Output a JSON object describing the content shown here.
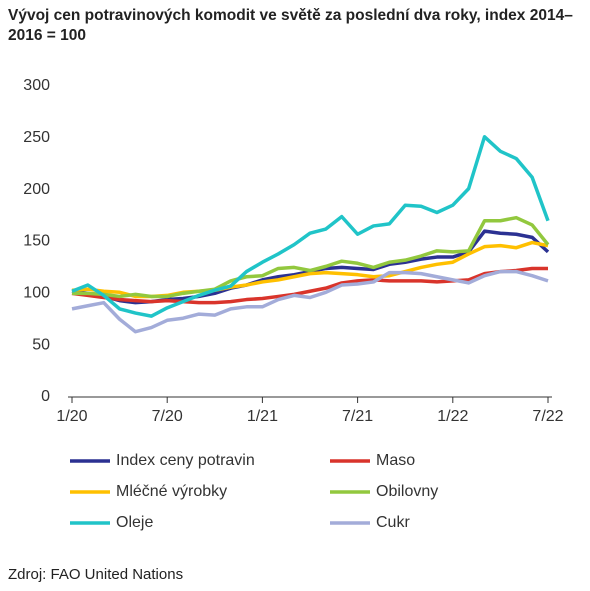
{
  "chart_data": {
    "type": "line",
    "title": "Vývoj cen potravinových komodit ve světě za poslední dva roky, index 2014–2016 = 100",
    "source": "Zdroj: FAO United Nations",
    "categories": [
      "1/20",
      null,
      null,
      null,
      null,
      null,
      "7/20",
      null,
      null,
      null,
      null,
      null,
      "1/21",
      null,
      null,
      null,
      null,
      null,
      "7/21",
      null,
      null,
      null,
      null,
      null,
      "1/22",
      null,
      null,
      null,
      null,
      null,
      "7/22"
    ],
    "ylim": [
      0,
      300
    ],
    "yticks": [
      0,
      50,
      100,
      150,
      200,
      250,
      300
    ],
    "grid": false,
    "series": [
      {
        "name": "Index ceny potravin",
        "color": "#2b3192",
        "values": [
          102,
          100,
          97,
          93,
          91,
          92,
          94,
          95,
          97,
          100,
          105,
          108,
          113,
          116,
          118,
          121,
          124,
          125,
          124,
          123,
          128,
          130,
          133,
          135,
          135,
          140,
          160,
          158,
          157,
          154,
          140
        ]
      },
      {
        "name": "Maso",
        "color": "#d9342b",
        "values": [
          100,
          98,
          96,
          94,
          93,
          92,
          93,
          92,
          91,
          91,
          92,
          94,
          95,
          97,
          99,
          102,
          105,
          110,
          112,
          113,
          112,
          112,
          112,
          111,
          112,
          113,
          119,
          121,
          122,
          124,
          124
        ]
      },
      {
        "name": "Mléčné výrobky",
        "color": "#ffc000",
        "values": [
          103,
          104,
          102,
          101,
          97,
          97,
          98,
          101,
          102,
          103,
          106,
          108,
          111,
          113,
          116,
          119,
          120,
          119,
          118,
          116,
          117,
          121,
          125,
          128,
          130,
          138,
          145,
          146,
          144,
          149,
          146
        ]
      },
      {
        "name": "Obilovny",
        "color": "#92c83e",
        "values": [
          100,
          100,
          99,
          97,
          99,
          97,
          97,
          100,
          102,
          104,
          112,
          116,
          117,
          124,
          125,
          122,
          126,
          131,
          129,
          125,
          130,
          132,
          136,
          141,
          140,
          141,
          170,
          170,
          173,
          166,
          147
        ]
      },
      {
        "name": "Oleje",
        "color": "#20c4c8",
        "values": [
          102,
          108,
          98,
          85,
          81,
          78,
          86,
          92,
          98,
          103,
          107,
          121,
          130,
          138,
          147,
          158,
          162,
          174,
          157,
          165,
          167,
          185,
          184,
          178,
          185,
          201,
          251,
          237,
          230,
          212,
          170
        ]
      },
      {
        "name": "Cukr",
        "color": "#a3acd9",
        "values": [
          85,
          88,
          91,
          75,
          63,
          67,
          74,
          76,
          80,
          79,
          85,
          87,
          87,
          94,
          98,
          96,
          101,
          108,
          109,
          111,
          120,
          120,
          119,
          116,
          113,
          110,
          117,
          121,
          121,
          117,
          112
        ]
      }
    ]
  }
}
